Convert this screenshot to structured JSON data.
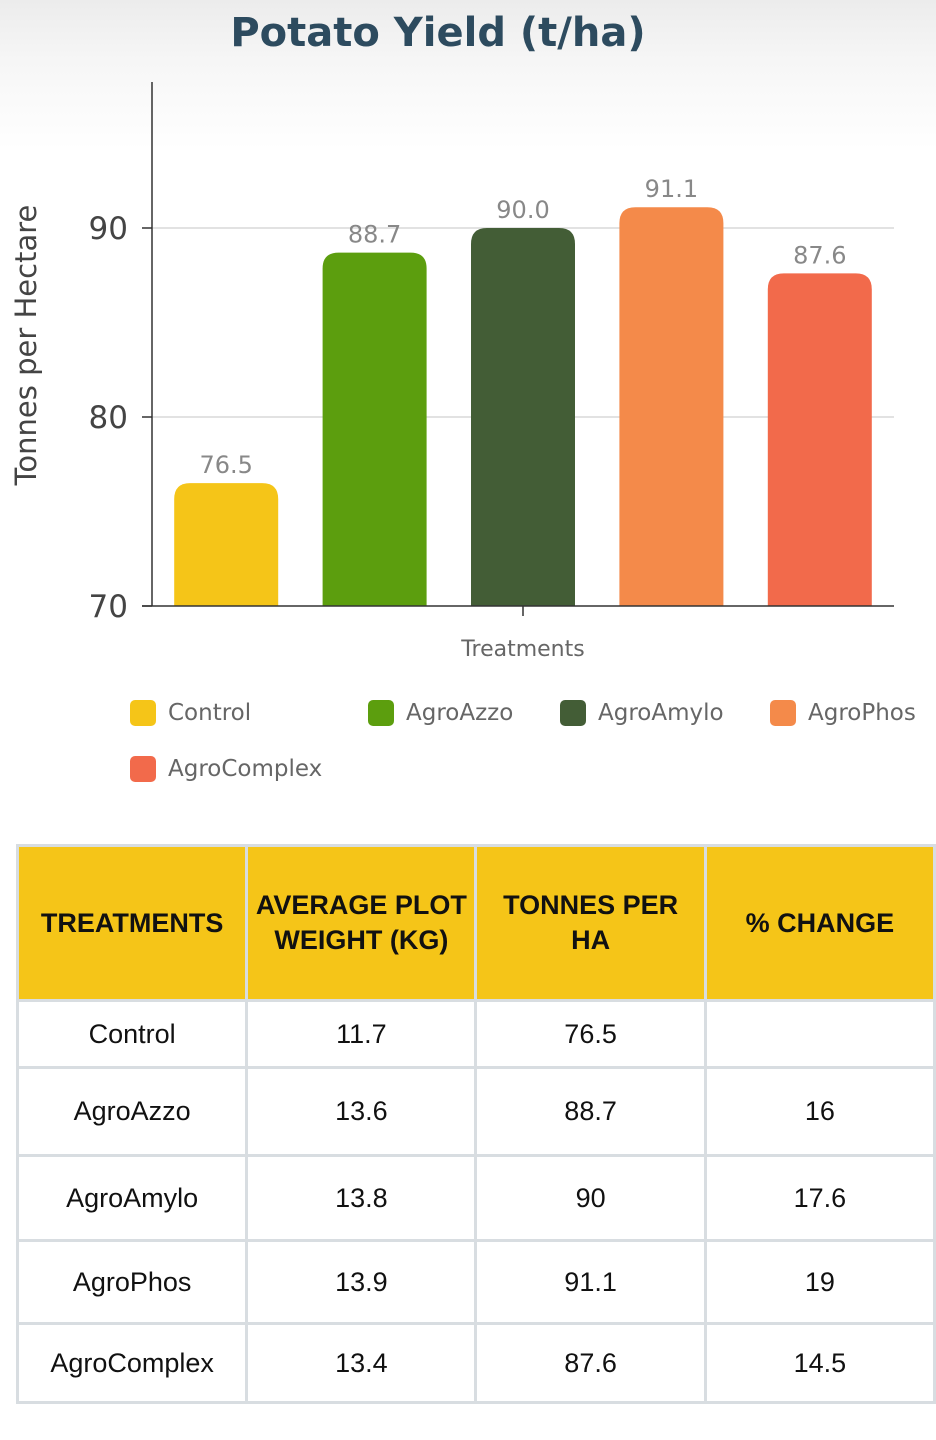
{
  "chart_data": {
    "type": "bar",
    "title": "Potato Yield  (t/ha)",
    "xlabel": "Treatments",
    "ylabel": "Tonnes per Hectare",
    "ylim": [
      70,
      98
    ],
    "yticks": [
      70,
      80,
      90
    ],
    "categories": [
      "Control",
      "AgroAzzo",
      "AgroAmylo",
      "AgroPhos",
      "AgroComplex"
    ],
    "values": [
      76.5,
      88.7,
      90.0,
      91.1,
      87.6
    ],
    "value_labels": [
      "76.5",
      "88.7",
      "90.0",
      "91.1",
      "87.6"
    ],
    "colors": [
      "#f5c518",
      "#5c9e0e",
      "#435d36",
      "#f48a4a",
      "#f26a4b"
    ],
    "grid": true,
    "legend_position": "bottom"
  },
  "legend": {
    "items": [
      "Control",
      "AgroAzzo",
      "AgroAmylo",
      "AgroPhos",
      "AgroComplex"
    ]
  },
  "table": {
    "headers": [
      "TREATMENTS",
      "AVERAGE PLOT WEIGHT (KG)",
      "TONNES PER HA",
      "% CHANGE"
    ],
    "rows": [
      [
        "Control",
        "11.7",
        "76.5",
        ""
      ],
      [
        "AgroAzzo",
        "13.6",
        "88.7",
        "16"
      ],
      [
        "AgroAmylo",
        "13.8",
        "90",
        "17.6"
      ],
      [
        "AgroPhos",
        "13.9",
        "91.1",
        "19"
      ],
      [
        "AgroComplex",
        "13.4",
        "87.6",
        "14.5"
      ]
    ]
  }
}
